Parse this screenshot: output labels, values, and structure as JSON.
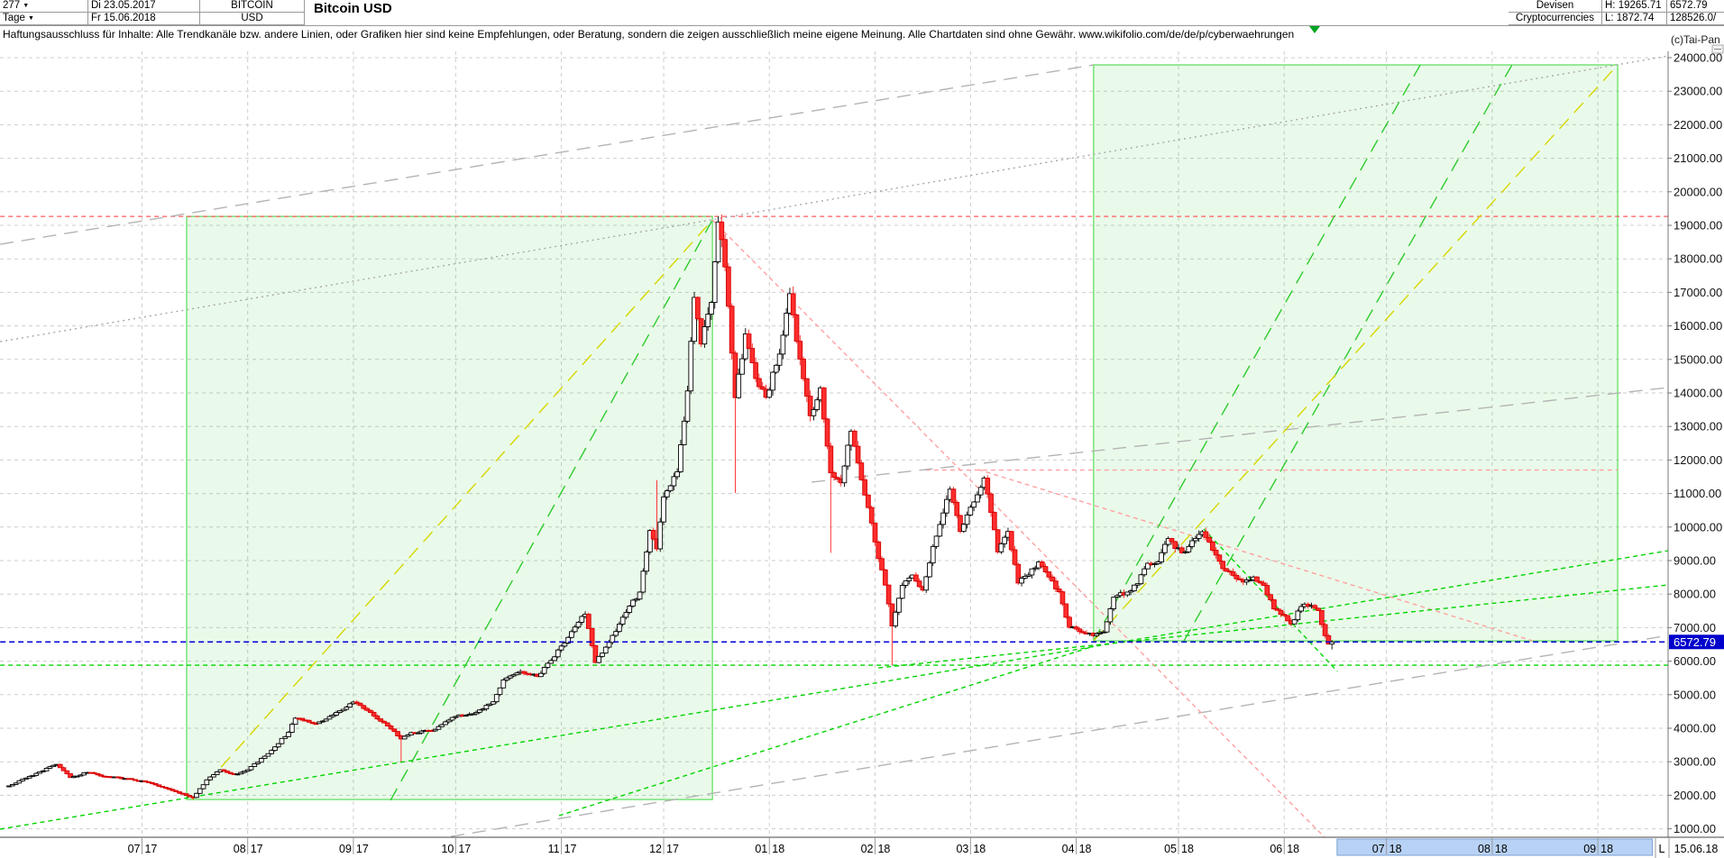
{
  "header": {
    "period_value": "277",
    "timeframe_value": "Tage",
    "date_from": "Di 23.05.2017",
    "date_to": "Fr 15.06.2018",
    "symbol": "BITCOIN",
    "currency": "USD",
    "title": "Bitcoin USD",
    "category_line1": "Devisen",
    "category_line2": "Cryptocurrencies",
    "high_label": "H: 19265.71",
    "low_label": "L: 1872.74",
    "last_value": "6572.79",
    "volume_value": "128526.0/"
  },
  "disclaimer": "Haftungsausschluss für Inhalte: Alle Trendkanäle bzw. andere Linien, oder Grafiken hier sind keine Empfehlungen, oder Beratung, sondern die zeigen ausschließlich meine eigene Meinung. Alle Chartdaten sind ohne Gewähr.  www.wikifolio.com/de/de/p/cyberwaehrungen",
  "watermark": "(c)Tai-Pan",
  "price_tag": "6572.79",
  "footer": {
    "last_marker": "L",
    "last_date": "15.06.18"
  },
  "colors": {
    "up_candle": "#ffffff",
    "up_stroke": "#000000",
    "down_candle": "#ff2d2d",
    "down_stroke": "#d40000",
    "grid": "#cdcdcd",
    "box_stroke": "#63e063",
    "box_fill": "#17c817",
    "blue": "#0000d4",
    "tag_bg": "#0000cc",
    "tag_text": "#ffffff",
    "red": "#ff5a5a",
    "red_light": "#ffa0a0",
    "green": "#00d400",
    "green_steep": "#2ecc2e",
    "yellow": "#d6d600",
    "gray": "#b4b4b4",
    "gray_dot": "#a8a8a8",
    "future_bar_fill": "#b8d2f5",
    "future_bar_stroke": "#7aa0d4"
  },
  "chart_data": {
    "type": "candlestick",
    "title": "Bitcoin USD",
    "timeframe": "Tage",
    "start_date": "23.05.2017",
    "end_date": "15.06.2018",
    "period_high": 19265.71,
    "period_low": 1872.74,
    "last_close": 6572.79,
    "ylabel": "USD",
    "y_ticks_from": 1000,
    "y_ticks_to": 24000,
    "y_tick_step": 1000,
    "grid": true,
    "close_keyframes_day_price": [
      [
        0,
        2280
      ],
      [
        4,
        2480
      ],
      [
        9,
        2700
      ],
      [
        14,
        2920
      ],
      [
        18,
        2530
      ],
      [
        23,
        2680
      ],
      [
        28,
        2560
      ],
      [
        34,
        2500
      ],
      [
        39,
        2430
      ],
      [
        45,
        2240
      ],
      [
        50,
        2060
      ],
      [
        54,
        1935
      ],
      [
        58,
        2460
      ],
      [
        62,
        2760
      ],
      [
        66,
        2620
      ],
      [
        70,
        2760
      ],
      [
        76,
        3240
      ],
      [
        82,
        3880
      ],
      [
        84,
        4300
      ],
      [
        90,
        4140
      ],
      [
        95,
        4390
      ],
      [
        101,
        4780
      ],
      [
        104,
        4590
      ],
      [
        110,
        4160
      ],
      [
        115,
        3680
      ],
      [
        118,
        3870
      ],
      [
        124,
        3920
      ],
      [
        128,
        4190
      ],
      [
        131,
        4350
      ],
      [
        136,
        4430
      ],
      [
        142,
        4790
      ],
      [
        145,
        5440
      ],
      [
        150,
        5690
      ],
      [
        155,
        5540
      ],
      [
        160,
        6130
      ],
      [
        162,
        6450
      ],
      [
        167,
        7160
      ],
      [
        169,
        7400
      ],
      [
        172,
        5960
      ],
      [
        176,
        6560
      ],
      [
        180,
        7310
      ],
      [
        185,
        8060
      ],
      [
        188,
        9900
      ],
      [
        190,
        9350
      ],
      [
        192,
        10900
      ],
      [
        196,
        11650
      ],
      [
        199,
        14060
      ],
      [
        201,
        16850
      ],
      [
        203,
        15460
      ],
      [
        206,
        16700
      ],
      [
        208,
        19100
      ],
      [
        210,
        17760
      ],
      [
        213,
        13860
      ],
      [
        216,
        15760
      ],
      [
        219,
        14430
      ],
      [
        222,
        13870
      ],
      [
        226,
        15160
      ],
      [
        229,
        16960
      ],
      [
        232,
        15010
      ],
      [
        235,
        13320
      ],
      [
        238,
        14150
      ],
      [
        241,
        11620
      ],
      [
        244,
        11320
      ],
      [
        247,
        12860
      ],
      [
        250,
        11410
      ],
      [
        253,
        10120
      ],
      [
        255,
        9060
      ],
      [
        257,
        8270
      ],
      [
        259,
        7050
      ],
      [
        262,
        8260
      ],
      [
        265,
        8570
      ],
      [
        268,
        8120
      ],
      [
        271,
        9420
      ],
      [
        274,
        10420
      ],
      [
        276,
        11130
      ],
      [
        279,
        9870
      ],
      [
        281,
        10360
      ],
      [
        284,
        10960
      ],
      [
        286,
        11460
      ],
      [
        289,
        9920
      ],
      [
        290,
        9260
      ],
      [
        293,
        9870
      ],
      [
        296,
        8330
      ],
      [
        299,
        8570
      ],
      [
        302,
        8960
      ],
      [
        305,
        8510
      ],
      [
        308,
        8070
      ],
      [
        311,
        7010
      ],
      [
        313,
        6960
      ],
      [
        316,
        6810
      ],
      [
        318,
        6760
      ],
      [
        321,
        6870
      ],
      [
        324,
        7910
      ],
      [
        328,
        8060
      ],
      [
        331,
        8310
      ],
      [
        334,
        8920
      ],
      [
        337,
        8960
      ],
      [
        340,
        9660
      ],
      [
        342,
        9360
      ],
      [
        345,
        9260
      ],
      [
        348,
        9660
      ],
      [
        350,
        9860
      ],
      [
        353,
        9310
      ],
      [
        356,
        8760
      ],
      [
        359,
        8560
      ],
      [
        362,
        8360
      ],
      [
        365,
        8510
      ],
      [
        368,
        8260
      ],
      [
        371,
        7560
      ],
      [
        374,
        7360
      ],
      [
        376,
        7110
      ],
      [
        379,
        7630
      ],
      [
        382,
        7660
      ],
      [
        384,
        7510
      ],
      [
        386,
        6760
      ],
      [
        387,
        6510
      ],
      [
        388,
        6572.79
      ]
    ],
    "wick_overrides": {
      "54": {
        "low": 1872.74
      },
      "115": {
        "low": 3000
      },
      "190": {
        "high": 11400
      },
      "208": {
        "high": 19265.71
      },
      "213": {
        "low": 11020
      },
      "241": {
        "low": 9230
      },
      "259": {
        "low": 5873
      },
      "388": {
        "low": 6350
      }
    },
    "x_months": [
      {
        "m": "07",
        "y": "17",
        "day": 39
      },
      {
        "m": "08",
        "y": "17",
        "day": 70
      },
      {
        "m": "09",
        "y": "17",
        "day": 101
      },
      {
        "m": "10",
        "y": "17",
        "day": 131
      },
      {
        "m": "11",
        "y": "17",
        "day": 162
      },
      {
        "m": "12",
        "y": "17",
        "day": 192
      },
      {
        "m": "01",
        "y": "18",
        "day": 223
      },
      {
        "m": "02",
        "y": "18",
        "day": 254
      },
      {
        "m": "03",
        "y": "18",
        "day": 282
      },
      {
        "m": "04",
        "y": "18",
        "day": 313
      },
      {
        "m": "05",
        "y": "18",
        "day": 343
      },
      {
        "m": "06",
        "y": "18",
        "day": 374
      },
      {
        "m": "07",
        "y": "18",
        "day": 404
      },
      {
        "m": "08",
        "y": "18",
        "day": 435
      },
      {
        "m": "09",
        "y": "18",
        "day": 466
      }
    ],
    "future_highlight": {
      "from_day": 389.5,
      "to_day": 482
    },
    "annotations": {
      "boxes": [
        {
          "name": "bull-run-2017-box",
          "from": [
            52.1,
            1872.74
          ],
          "to": [
            206.3,
            19265.71
          ]
        },
        {
          "name": "projection-2018-box",
          "from": [
            318.1,
            6605
          ],
          "to": [
            471.8,
            23785
          ]
        }
      ],
      "hlines": [
        {
          "name": "high-resistance-19265",
          "price": 19265.71,
          "from_day": -2.6,
          "to_day": 486.6,
          "color": "red",
          "style": "dashed"
        },
        {
          "name": "resistance-11700",
          "price": 11700,
          "from_day": 268.9,
          "to_day": 471.8,
          "color": "red_light",
          "style": "dashed"
        },
        {
          "name": "support-feb-low-5880",
          "price": 5880,
          "from_day": -2.6,
          "to_day": 486.6,
          "color": "green",
          "style": "dashed"
        },
        {
          "name": "last-price-line",
          "price": 6572.79,
          "from_day": -2.6,
          "to_day": 486.6,
          "color": "blue",
          "style": "dashed"
        }
      ],
      "lines": [
        {
          "name": "gray-trend-through-peak",
          "color": "gray_dot",
          "style": "dotted",
          "from": [
            -2.6,
            15530
          ],
          "to": [
            486.6,
            24050
          ]
        },
        {
          "name": "gray-trend-to-box2-top-left",
          "color": "gray",
          "style": "longdash",
          "from": [
            -2.6,
            18435
          ],
          "to": [
            318.1,
            23785
          ]
        },
        {
          "name": "gray-trend-bottom-right",
          "color": "gray",
          "style": "longdash",
          "from": [
            129.6,
            770
          ],
          "to": [
            486.6,
            6766
          ]
        },
        {
          "name": "gray-trend-mid-right",
          "color": "gray",
          "style": "longdash",
          "from": [
            235.4,
            11340
          ],
          "to": [
            486.6,
            14160
          ]
        },
        {
          "name": "uptrend-yellow-2017",
          "color": "yellow",
          "style": "longdash",
          "from": [
            53.7,
            1877
          ],
          "to": [
            206.3,
            19160
          ]
        },
        {
          "name": "uptrend-green-2017",
          "color": "green_steep",
          "style": "longdash",
          "from": [
            111.9,
            1850
          ],
          "to": [
            206.3,
            19160
          ]
        },
        {
          "name": "downtrend-from-peak",
          "color": "red_light",
          "style": "dashed",
          "from": [
            206.3,
            19160
          ],
          "to": [
            386.1,
            720
          ]
        },
        {
          "name": "downtrend-may-2018",
          "color": "red_light",
          "style": "dashed",
          "from": [
            284.3,
            11714
          ],
          "to": [
            446.9,
            6605
          ]
        },
        {
          "name": "support-long-green",
          "color": "green",
          "style": "dashed",
          "from": [
            -2.6,
            989
          ],
          "to": [
            486.6,
            9295
          ]
        },
        {
          "name": "support-from-feb-low",
          "color": "green",
          "style": "dashed",
          "from": [
            255,
            5800
          ],
          "to": [
            486.6,
            8274
          ]
        },
        {
          "name": "support-ray-to-corner",
          "color": "green",
          "style": "dashed",
          "from": [
            161.3,
            1392
          ],
          "to": [
            318.1,
            6444
          ]
        },
        {
          "name": "green-decline-projection",
          "color": "green",
          "style": "dashed",
          "from": [
            350.4,
            9941
          ],
          "to": [
            389.6,
            5694
          ]
        },
        {
          "name": "projection-green-steep-1",
          "color": "green_steep",
          "style": "longdash",
          "from": [
            318.1,
            6605
          ],
          "to": [
            413.9,
            23785
          ]
        },
        {
          "name": "projection-green-steep-2",
          "color": "green_steep",
          "style": "longdash",
          "from": [
            344.6,
            6605
          ],
          "to": [
            440.8,
            23785
          ]
        },
        {
          "name": "projection-yellow-right",
          "color": "yellow",
          "style": "longdash",
          "from": [
            318.1,
            6605
          ],
          "to": [
            471.8,
            23785
          ]
        }
      ]
    }
  }
}
